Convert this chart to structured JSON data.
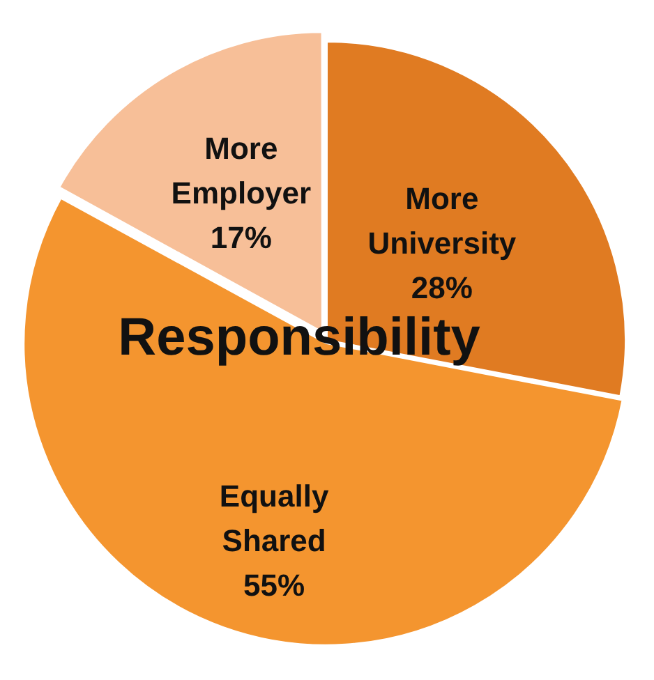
{
  "chart_data": {
    "type": "pie",
    "title": "Responsibility",
    "categories": [
      "More University",
      "Equally Shared",
      "More Employer"
    ],
    "values": [
      28,
      55,
      17
    ],
    "colors": [
      "#e07b22",
      "#f4952f",
      "#f7bf98"
    ],
    "value_labels": [
      "28%",
      "55%",
      "17%"
    ],
    "legend": false
  }
}
